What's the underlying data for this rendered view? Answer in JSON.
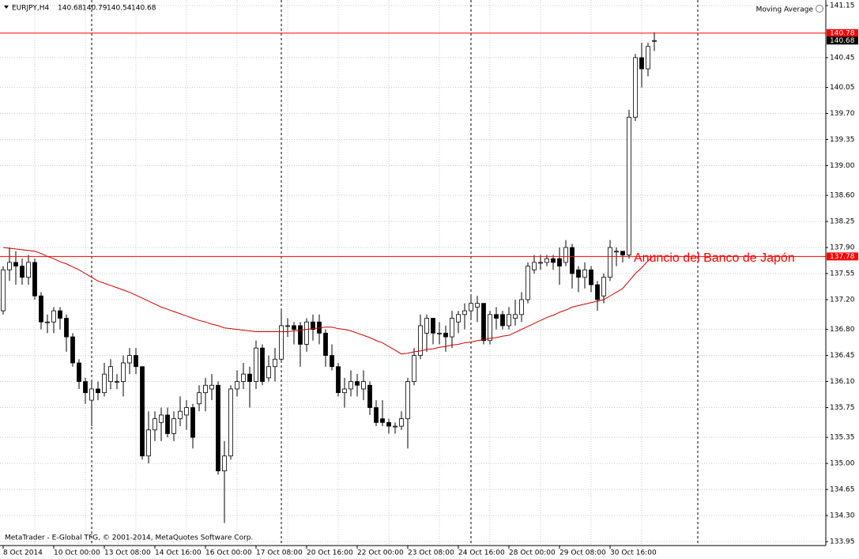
{
  "chart_data": {
    "type": "candlestick",
    "symbol": "EURJPY,H4",
    "indicator_label": "Moving Average",
    "footer": "MetaTrader - E-Global TFG, © 2001-2014, MetaQuotes Software Corp.",
    "annotation": "Anuncio del Banco de Japón",
    "categories": [
      "8 Oct 2014",
      null,
      null,
      null,
      null,
      null,
      null,
      null,
      "10 Oct 00:00",
      null,
      null,
      null,
      null,
      null,
      null,
      null,
      "13 Oct 08:00",
      null,
      null,
      null,
      null,
      null,
      null,
      null,
      "14 Oct 16:00",
      null,
      null,
      null,
      null,
      null,
      null,
      null,
      "16 Oct 00:00",
      null,
      null,
      null,
      null,
      null,
      null,
      null,
      "17 Oct 08:00",
      null,
      null,
      null,
      null,
      null,
      null,
      null,
      "20 Oct 16:00",
      null,
      null,
      null,
      null,
      null,
      null,
      null,
      "22 Oct 00:00",
      null,
      null,
      null,
      null,
      null,
      null,
      null,
      "23 Oct 08:00",
      null,
      null,
      null,
      null,
      null,
      null,
      null,
      "24 Oct 16:00",
      null,
      null,
      null,
      null,
      null,
      null,
      null,
      "28 Oct 00:00",
      null,
      null,
      null,
      null,
      null,
      null,
      null,
      "29 Oct 08:00",
      null,
      null,
      null,
      null,
      null,
      null,
      null,
      "30 Oct 16:00",
      null,
      null,
      null,
      null,
      null,
      null,
      null
    ],
    "open": [
      137.05,
      137.6,
      137.7,
      137.65,
      137.5,
      137.7,
      137.25,
      136.9,
      136.9,
      137.05,
      136.95,
      136.7,
      136.35,
      136.1,
      135.85,
      136.0,
      135.95,
      136.1,
      136.1,
      136.1,
      136.35,
      136.45,
      136.3,
      135.1,
      135.45,
      135.55,
      135.65,
      135.4,
      135.6,
      135.65,
      135.75,
      135.8,
      135.95,
      136.0,
      136.05,
      134.9,
      135.1,
      136.0,
      136.1,
      136.2,
      136.1,
      136.55,
      136.15,
      136.3,
      136.4,
      136.85,
      136.85,
      136.85,
      136.6,
      136.9,
      136.9,
      136.75,
      136.45,
      136.3,
      135.95,
      136.0,
      136.1,
      136.0,
      136.05,
      135.75,
      135.6,
      135.55,
      135.5,
      135.5,
      135.6,
      136.1,
      136.45,
      136.75,
      136.95,
      136.75,
      136.75,
      136.7,
      136.9,
      137.0,
      137.05,
      137.1,
      137.15,
      136.65,
      137.0,
      137.0,
      136.85,
      136.95,
      137.0,
      137.2,
      137.6,
      137.7,
      137.7,
      137.75,
      137.75,
      137.7,
      137.9,
      137.6,
      137.5,
      137.6,
      137.4,
      137.25,
      137.5,
      137.85,
      137.85,
      137.8,
      139.65,
      140.45,
      140.3,
      140.68
    ],
    "high": [
      137.65,
      137.9,
      137.85,
      137.75,
      137.8,
      137.75,
      137.3,
      137.0,
      137.1,
      137.1,
      137.0,
      136.75,
      136.4,
      136.15,
      136.1,
      136.1,
      136.35,
      136.4,
      136.2,
      136.45,
      136.55,
      136.55,
      136.3,
      135.7,
      135.7,
      135.75,
      135.75,
      135.7,
      135.9,
      135.85,
      135.8,
      136.05,
      136.15,
      136.2,
      136.1,
      135.3,
      136.05,
      136.25,
      136.35,
      136.3,
      136.65,
      136.6,
      136.45,
      136.55,
      137.05,
      136.95,
      136.9,
      136.9,
      136.95,
      137.0,
      137.0,
      136.8,
      136.6,
      136.35,
      136.15,
      136.25,
      136.2,
      136.25,
      136.1,
      135.85,
      135.85,
      135.6,
      135.55,
      135.7,
      136.15,
      136.55,
      137.0,
      137.0,
      136.95,
      136.9,
      136.85,
      137.05,
      137.05,
      137.15,
      137.25,
      137.25,
      137.15,
      137.05,
      137.1,
      137.05,
      137.1,
      137.2,
      137.3,
      137.7,
      137.8,
      137.8,
      137.8,
      137.8,
      137.9,
      138.0,
      137.95,
      137.65,
      137.7,
      137.65,
      137.45,
      137.55,
      138.0,
      137.9,
      137.85,
      139.75,
      140.5,
      140.65,
      140.65,
      140.79
    ],
    "low": [
      137.0,
      137.45,
      137.4,
      137.4,
      137.4,
      137.2,
      136.8,
      136.75,
      136.75,
      136.8,
      136.5,
      136.3,
      136.0,
      135.8,
      135.5,
      135.85,
      135.9,
      136.0,
      136.0,
      135.9,
      136.2,
      136.2,
      135.05,
      135.0,
      135.3,
      135.3,
      135.35,
      135.3,
      135.5,
      135.45,
      135.2,
      135.7,
      135.7,
      135.85,
      134.85,
      134.2,
      135.05,
      135.9,
      136.0,
      135.75,
      136.0,
      136.05,
      136.1,
      136.1,
      136.35,
      136.7,
      136.6,
      136.3,
      136.5,
      136.65,
      136.6,
      136.3,
      136.25,
      135.9,
      135.75,
      135.9,
      135.9,
      135.85,
      135.65,
      135.5,
      135.5,
      135.4,
      135.4,
      135.45,
      135.2,
      136.05,
      136.4,
      136.5,
      136.6,
      136.6,
      136.5,
      136.55,
      136.75,
      136.8,
      136.95,
      136.9,
      136.6,
      136.6,
      136.8,
      136.8,
      136.8,
      136.85,
      136.9,
      137.15,
      137.55,
      137.6,
      137.65,
      137.6,
      137.4,
      137.65,
      137.35,
      137.3,
      137.35,
      137.3,
      137.05,
      137.15,
      137.45,
      137.65,
      137.7,
      137.75,
      139.6,
      140.05,
      140.2,
      140.54
    ],
    "close": [
      137.6,
      137.7,
      137.65,
      137.5,
      137.7,
      137.25,
      136.9,
      136.9,
      137.05,
      136.95,
      136.7,
      136.35,
      136.1,
      135.95,
      136.0,
      135.95,
      136.2,
      136.3,
      136.1,
      136.35,
      136.45,
      136.3,
      135.1,
      135.45,
      135.6,
      135.65,
      135.4,
      135.6,
      135.7,
      135.75,
      135.35,
      135.95,
      136.05,
      136.05,
      134.9,
      135.1,
      136.0,
      136.1,
      136.2,
      136.1,
      136.55,
      136.1,
      136.3,
      136.4,
      136.85,
      136.85,
      136.8,
      136.6,
      136.9,
      136.8,
      136.75,
      136.45,
      136.3,
      135.95,
      136.0,
      136.1,
      136.05,
      136.1,
      135.75,
      135.55,
      135.55,
      135.5,
      135.5,
      135.6,
      136.1,
      136.45,
      136.85,
      136.95,
      136.75,
      136.75,
      136.7,
      136.95,
      137.0,
      137.05,
      137.15,
      137.15,
      136.65,
      137.0,
      136.95,
      136.85,
      137.0,
      137.0,
      137.2,
      137.65,
      137.7,
      137.7,
      137.75,
      137.7,
      137.65,
      137.9,
      137.55,
      137.5,
      137.6,
      137.4,
      137.2,
      137.5,
      137.9,
      137.85,
      137.8,
      139.65,
      140.45,
      140.3,
      140.6,
      140.68
    ],
    "up_color": "#ffffff",
    "down_color": "#000000",
    "series": [
      {
        "name": "Moving Average",
        "color": "#cc0000",
        "values": [
          137.9,
          137.89,
          137.88,
          137.87,
          137.86,
          137.85,
          137.82,
          137.78,
          137.75,
          137.71,
          137.68,
          137.64,
          137.6,
          137.55,
          137.5,
          137.45,
          137.42,
          137.39,
          137.36,
          137.33,
          137.3,
          137.26,
          137.22,
          137.18,
          137.14,
          137.1,
          137.07,
          137.04,
          137.01,
          136.98,
          136.95,
          136.92,
          136.9,
          136.87,
          136.85,
          136.82,
          136.81,
          136.8,
          136.79,
          136.78,
          136.77,
          136.77,
          136.77,
          136.77,
          136.77,
          136.77,
          136.78,
          136.79,
          136.8,
          136.81,
          136.82,
          136.83,
          136.83,
          136.81,
          136.8,
          136.78,
          136.75,
          136.72,
          136.69,
          136.65,
          136.62,
          136.57,
          136.52,
          136.47,
          136.48,
          136.5,
          136.51,
          136.53,
          136.54,
          136.56,
          136.57,
          136.59,
          136.6,
          136.62,
          136.63,
          136.65,
          136.66,
          136.68,
          136.69,
          136.71,
          136.72,
          136.76,
          136.8,
          136.84,
          136.88,
          136.92,
          136.96,
          136.99,
          137.03,
          137.06,
          137.1,
          137.12,
          137.14,
          137.16,
          137.18,
          137.2,
          137.25,
          137.3,
          137.35,
          137.45,
          137.55,
          137.63,
          137.72,
          137.8
        ]
      }
    ],
    "hlines": [
      {
        "value": 140.78,
        "color": "#ff0000"
      },
      {
        "value": 137.78,
        "color": "#ff0000"
      }
    ],
    "ylim": [
      133.95,
      141.15
    ],
    "yticks": [
      141.15,
      140.45,
      140.05,
      {
        "value": 139.7,
        "label": "139.70"
      },
      139.35,
      {
        "value": 139.0,
        "label": "139.00"
      },
      {
        "value": 138.6,
        "label": "138.60"
      },
      138.25,
      {
        "value": 137.9,
        "label": "137.90"
      },
      137.55,
      {
        "value": 137.2,
        "label": "137.20"
      },
      {
        "value": 136.8,
        "label": "136.80"
      },
      136.45,
      {
        "value": 136.1,
        "label": "136.10"
      },
      135.75,
      135.35,
      {
        "value": 135.0,
        "label": "135.00"
      },
      134.65,
      {
        "value": 134.3,
        "label": "134.30"
      },
      133.95
    ],
    "grid": true
  }
}
